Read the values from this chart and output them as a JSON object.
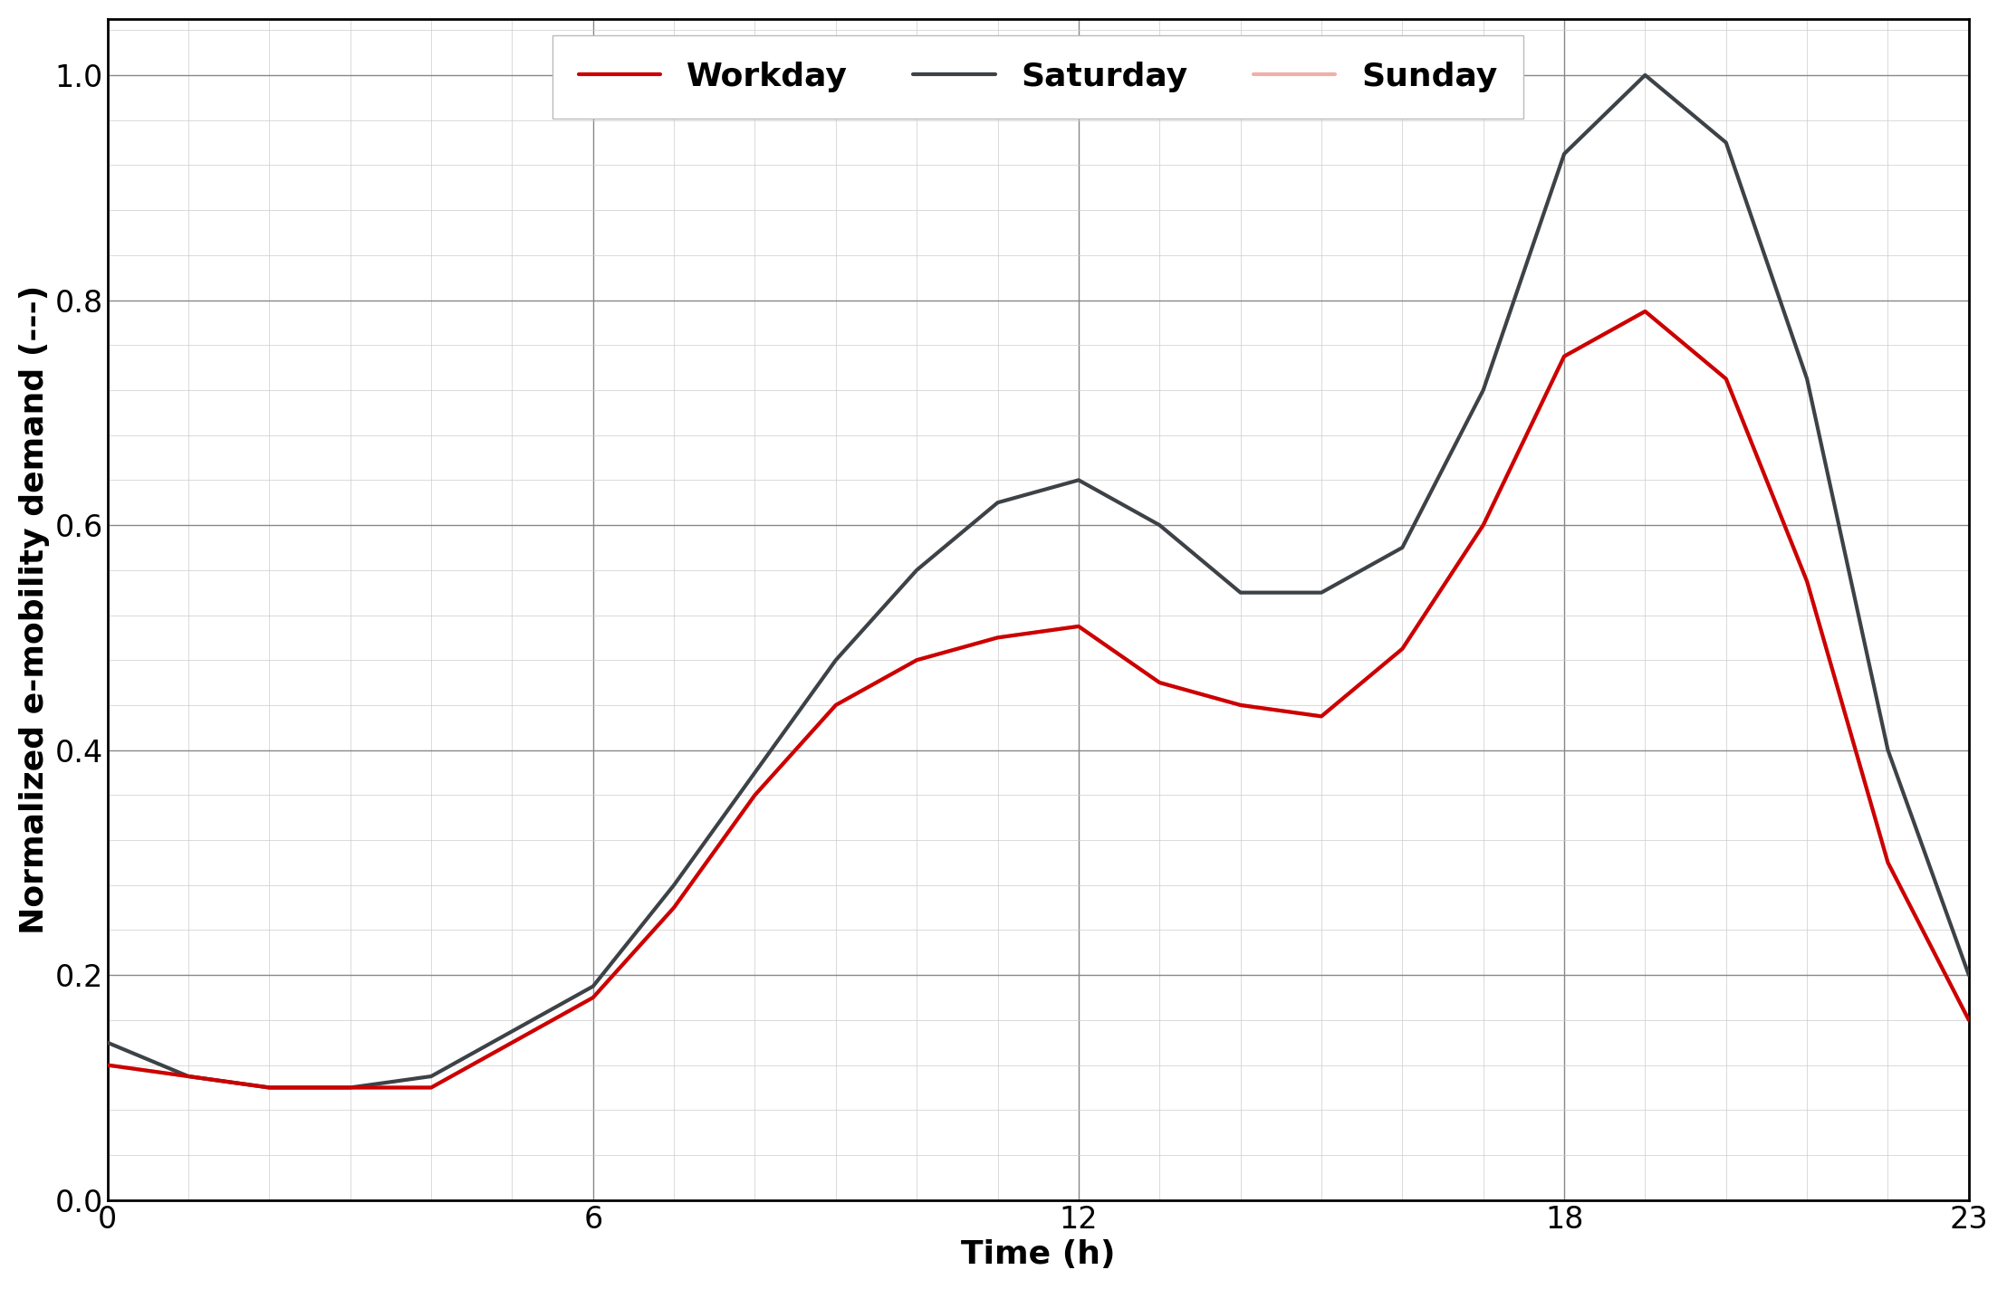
{
  "workday_x": [
    0,
    1,
    2,
    3,
    4,
    5,
    6,
    7,
    8,
    9,
    10,
    11,
    12,
    13,
    14,
    15,
    16,
    17,
    18,
    19,
    20,
    21,
    22,
    23
  ],
  "workday_y": [
    0.12,
    0.11,
    0.1,
    0.1,
    0.1,
    0.14,
    0.18,
    0.26,
    0.36,
    0.44,
    0.48,
    0.5,
    0.51,
    0.46,
    0.44,
    0.43,
    0.49,
    0.6,
    0.75,
    0.79,
    0.73,
    0.55,
    0.3,
    0.16
  ],
  "saturday_x": [
    0,
    1,
    2,
    3,
    4,
    5,
    6,
    7,
    8,
    9,
    10,
    11,
    12,
    13,
    14,
    15,
    16,
    17,
    18,
    19,
    20,
    21,
    22,
    23
  ],
  "saturday_y": [
    0.14,
    0.11,
    0.1,
    0.1,
    0.11,
    0.15,
    0.19,
    0.28,
    0.38,
    0.48,
    0.56,
    0.62,
    0.64,
    0.6,
    0.54,
    0.54,
    0.58,
    0.72,
    0.93,
    1.0,
    0.94,
    0.73,
    0.4,
    0.2
  ],
  "sunday_x": [
    0,
    1,
    2,
    3,
    4,
    5,
    6,
    7,
    8,
    9,
    10,
    11,
    12,
    13,
    14,
    15,
    16,
    17,
    18,
    19,
    20,
    21,
    22,
    23
  ],
  "sunday_y": [
    0.12,
    0.11,
    0.1,
    0.1,
    0.1,
    0.14,
    0.18,
    0.26,
    0.36,
    0.44,
    0.48,
    0.5,
    0.51,
    0.46,
    0.44,
    0.43,
    0.49,
    0.6,
    0.75,
    0.79,
    0.73,
    0.55,
    0.3,
    0.16
  ],
  "workday_color": "#cc0000",
  "saturday_color": "#3d4247",
  "sunday_color": "#f0b0a8",
  "ylabel": "Normalized e-mobility demand (---)",
  "xlabel": "Time (h)",
  "xlim": [
    0,
    23
  ],
  "ylim": [
    0.0,
    1.05
  ],
  "yticks_major": [
    0.0,
    0.2,
    0.4,
    0.6,
    0.8,
    1.0
  ],
  "yticks_minor_step": 0.04,
  "xticks_major": [
    0,
    6,
    12,
    18,
    23
  ],
  "xticks_minor_step": 1,
  "legend_labels": [
    "Workday",
    "Saturday",
    "Sunday"
  ],
  "line_width": 3.0,
  "background_color": "#ffffff",
  "grid_major_color": "#888888",
  "grid_minor_color": "#cccccc",
  "grid_major_lw": 1.0,
  "grid_minor_lw": 0.5,
  "label_fontsize": 26,
  "tick_fontsize": 24,
  "legend_fontsize": 26
}
